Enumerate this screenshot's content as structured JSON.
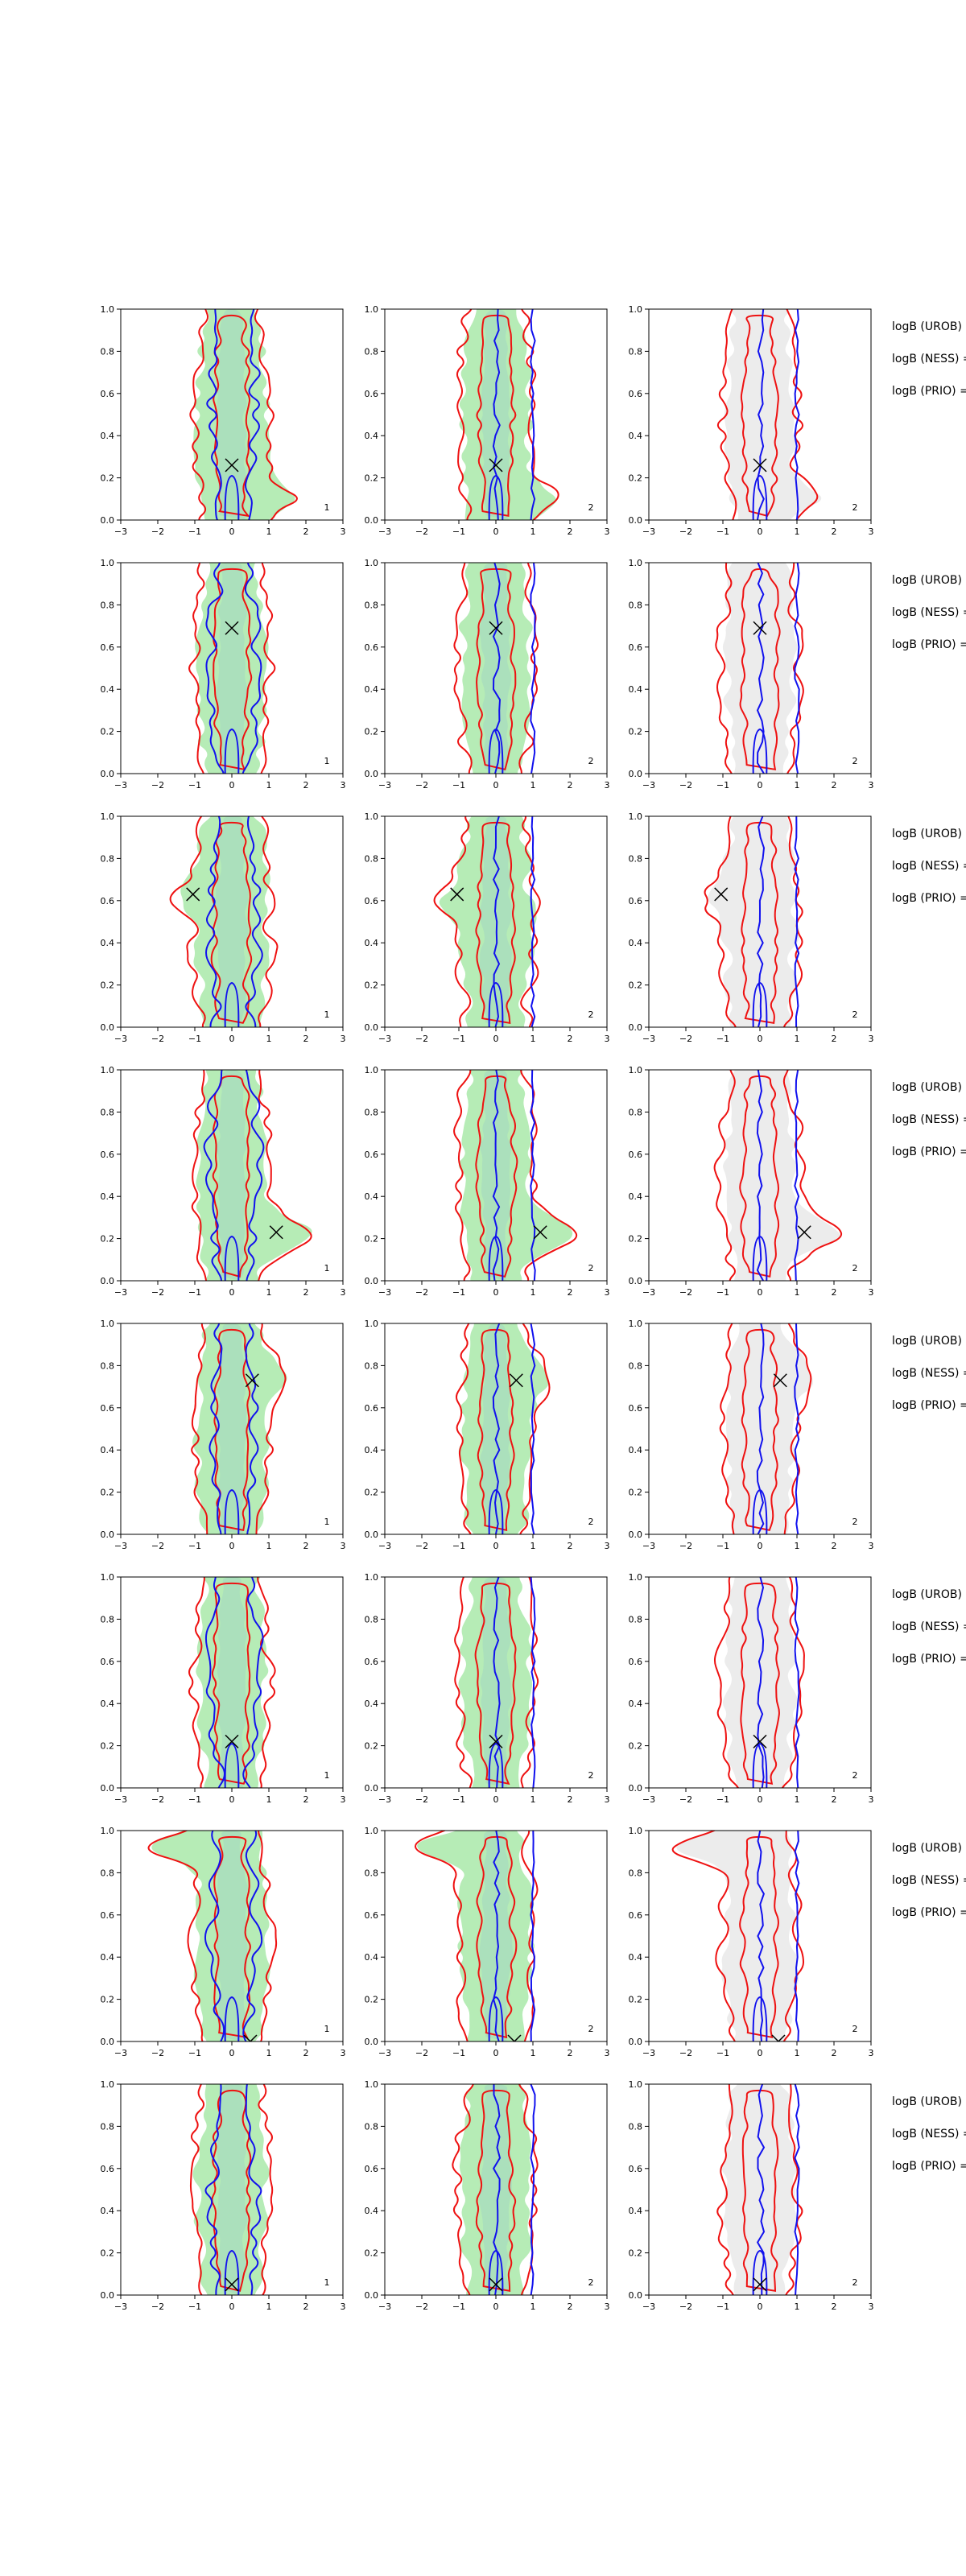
{
  "colors": {
    "region_fill": "#b6ecb6",
    "region_inner": "#a3d9c0",
    "gray_fill": "#ececec",
    "red_contour": "#ee1111",
    "blue_contour": "#1111ee",
    "marker": "#000000"
  },
  "chart_data": {
    "type": "contour",
    "grid": {
      "rows": 8,
      "cols": 3
    },
    "xlim": [
      -3,
      3
    ],
    "ylim": [
      0.0,
      1.0
    ],
    "xticks": [
      "−3",
      "−2",
      "−1",
      "0",
      "1",
      "2",
      "3"
    ],
    "yticks": [
      "0.0",
      "0.2",
      "0.4",
      "0.6",
      "0.8",
      "1.0"
    ],
    "panel_tags": [
      "1",
      "2",
      "2"
    ],
    "side_labels": [
      "logB (UROB) =",
      "logB (NESS) =",
      "logB (PRIO) ="
    ],
    "markers": [
      {
        "x": 0.0,
        "y": 0.26
      },
      {
        "x": 0.0,
        "y": 0.69
      },
      {
        "x": -1.05,
        "y": 0.63
      },
      {
        "x": 1.2,
        "y": 0.23
      },
      {
        "x": 0.55,
        "y": 0.73
      },
      {
        "x": 0.0,
        "y": 0.22
      },
      {
        "x": 0.5,
        "y": 0.0
      },
      {
        "x": 0.0,
        "y": 0.05
      }
    ]
  }
}
